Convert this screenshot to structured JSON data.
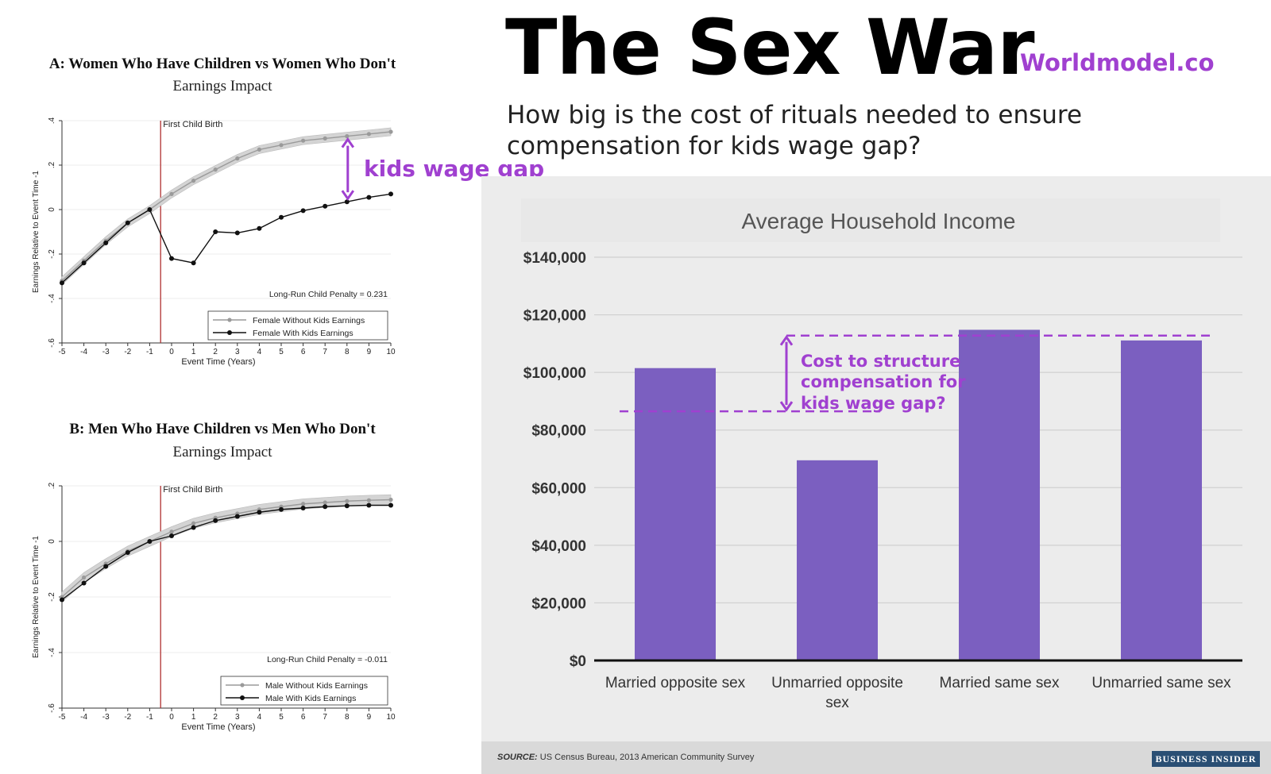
{
  "header": {
    "title": "The Sex War",
    "brand": "Worldmodel.co",
    "subtitle": "How big is the cost of rituals needed to ensure compensation for kids wage gap?"
  },
  "annotations": {
    "kids_gap": "kids wage gap",
    "cost_gap": "Cost to structure compensation for kids wage gap?"
  },
  "colors": {
    "accent": "#a040d0",
    "bar": "#7b5fc0",
    "event_line": "#b03030"
  },
  "chart_data": [
    {
      "type": "line",
      "title": "A: Women Who Have Children vs Women Who Don't",
      "subtitle": "Earnings Impact",
      "xlabel": "Event Time (Years)",
      "ylabel": "Earnings Relative to Event Time -1",
      "xlim": [
        -5,
        10
      ],
      "ylim": [
        -0.6,
        0.4
      ],
      "x_ticks": [
        "-5",
        "-4",
        "-3",
        "-2",
        "-1",
        "0",
        "1",
        "2",
        "3",
        "4",
        "5",
        "6",
        "7",
        "8",
        "9",
        "10"
      ],
      "y_ticks": [
        ".4",
        ".2",
        "0",
        "-.2",
        "-.4",
        "-.6"
      ],
      "event_label": "First Child Birth",
      "penalty_label": "Long-Run Child Penalty = 0.231",
      "legend": [
        "Female Without Kids Earnings",
        "Female With Kids Earnings"
      ],
      "x": [
        -5,
        -4,
        -3,
        -2,
        -1,
        0,
        1,
        2,
        3,
        4,
        5,
        6,
        7,
        8,
        9,
        10
      ],
      "series": [
        {
          "name": "Female Without Kids Earnings",
          "values": [
            -0.32,
            -0.23,
            -0.14,
            -0.06,
            0,
            0.07,
            0.13,
            0.18,
            0.23,
            0.27,
            0.29,
            0.31,
            0.32,
            0.33,
            0.34,
            0.35
          ]
        },
        {
          "name": "Female With Kids Earnings",
          "values": [
            -0.33,
            -0.24,
            -0.15,
            -0.06,
            0,
            -0.22,
            -0.24,
            -0.1,
            -0.105,
            -0.085,
            -0.035,
            -0.005,
            0.015,
            0.035,
            0.055,
            0.07
          ]
        }
      ]
    },
    {
      "type": "line",
      "title": "B: Men Who Have Children vs Men Who Don't",
      "subtitle": "Earnings Impact",
      "xlabel": "Event Time (Years)",
      "ylabel": "Earnings Relative to Event Time -1",
      "xlim": [
        -5,
        10
      ],
      "ylim": [
        -0.6,
        0.2
      ],
      "x_ticks": [
        "-5",
        "-4",
        "-3",
        "-2",
        "-1",
        "0",
        "1",
        "2",
        "3",
        "4",
        "5",
        "6",
        "7",
        "8",
        "9",
        "10"
      ],
      "y_ticks": [
        ".2",
        "0",
        "-.2",
        "-.4",
        "-.6"
      ],
      "event_label": "First Child Birth",
      "penalty_label": "Long-Run Child Penalty = -0.011",
      "legend": [
        "Male Without Kids Earnings",
        "Male With Kids Earnings"
      ],
      "x": [
        -5,
        -4,
        -3,
        -2,
        -1,
        0,
        1,
        2,
        3,
        4,
        5,
        6,
        7,
        8,
        9,
        10
      ],
      "series": [
        {
          "name": "Male Without Kids Earnings",
          "values": [
            -0.2,
            -0.13,
            -0.08,
            -0.035,
            0,
            0.035,
            0.065,
            0.085,
            0.1,
            0.115,
            0.125,
            0.135,
            0.14,
            0.145,
            0.148,
            0.15
          ]
        },
        {
          "name": "Male With Kids Earnings",
          "values": [
            -0.21,
            -0.15,
            -0.09,
            -0.04,
            0,
            0.02,
            0.05,
            0.075,
            0.09,
            0.105,
            0.115,
            0.12,
            0.125,
            0.128,
            0.13,
            0.13
          ]
        }
      ]
    },
    {
      "type": "bar",
      "title": "Average Household Income",
      "categories": [
        "Married opposite sex",
        "Unmarried opposite sex",
        "Married same sex",
        "Unmarried same sex"
      ],
      "values": [
        101500,
        69500,
        114800,
        111100
      ],
      "ylim": [
        0,
        140000
      ],
      "y_ticks": [
        "$0",
        "$20,000",
        "$40,000",
        "$60,000",
        "$80,000",
        "$100,000",
        "$120,000",
        "$140,000"
      ],
      "source_label": "SOURCE:",
      "source": "US Census Bureau, 2013 American Community Survey",
      "logo": "BUSINESS INSIDER",
      "gap_low": 86500,
      "gap_high": 112800
    }
  ]
}
